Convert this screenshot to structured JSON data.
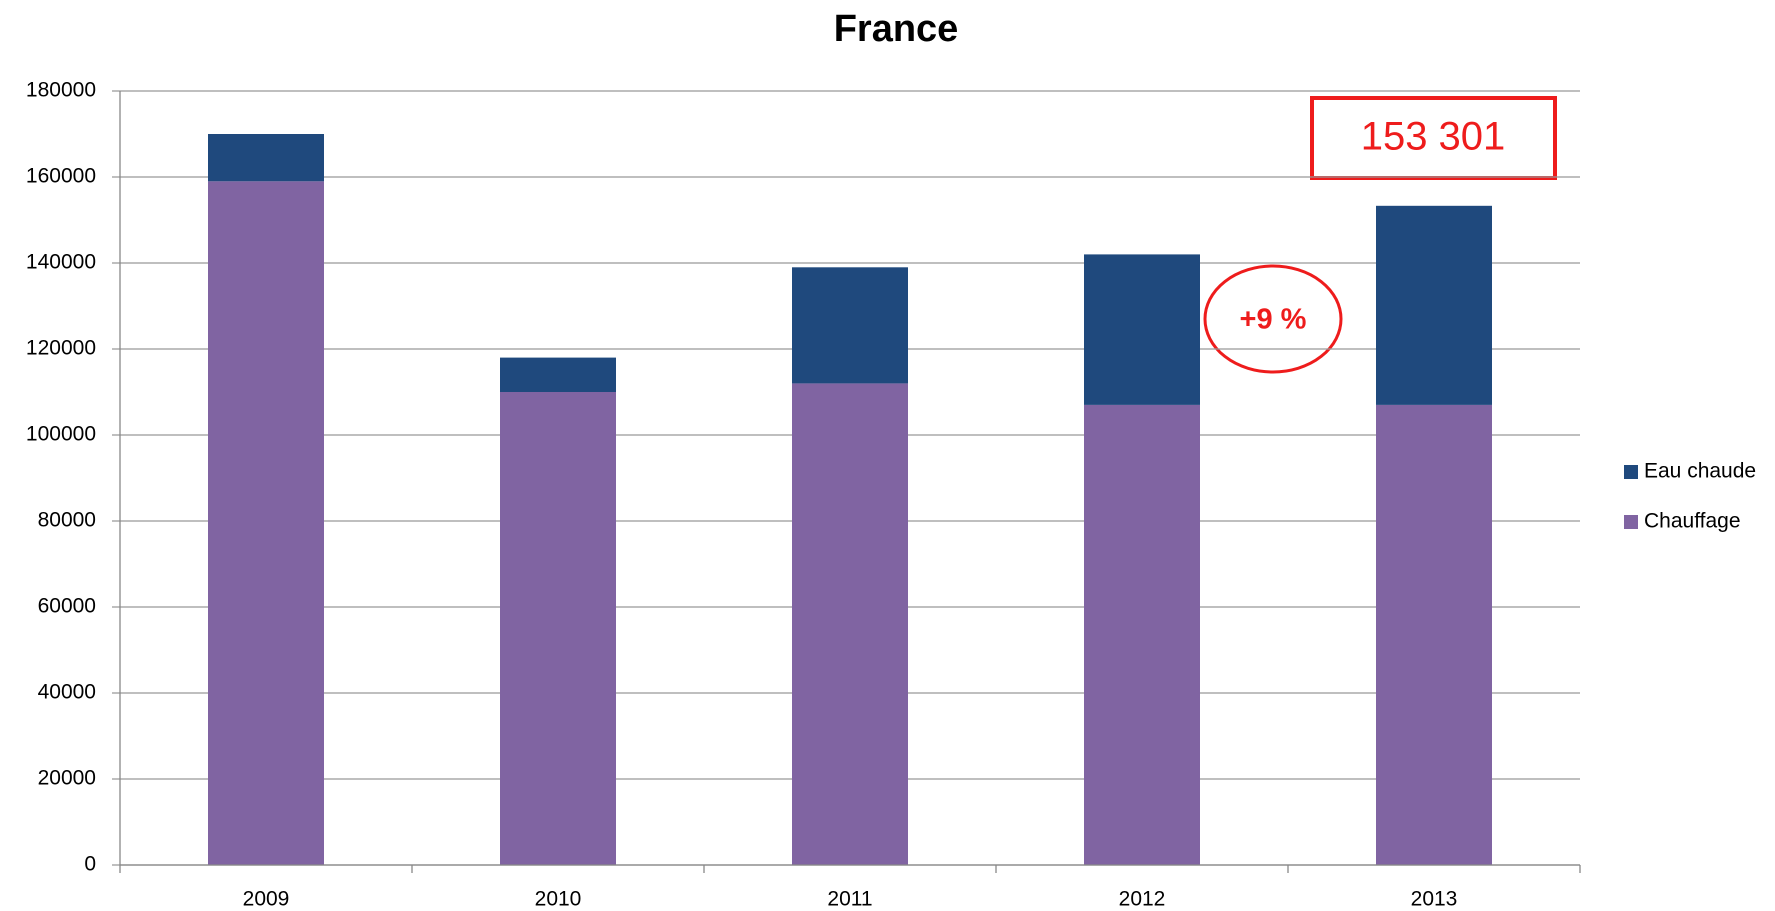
{
  "chart_data": {
    "type": "stacked_bar",
    "title": "France",
    "categories": [
      "2009",
      "2010",
      "2011",
      "2012",
      "2013"
    ],
    "series": [
      {
        "name": "Chauffage",
        "color": "#8064a2",
        "values": [
          159000,
          110000,
          112000,
          107000,
          107000
        ]
      },
      {
        "name": "Eau chaude",
        "color": "#1f497d",
        "values": [
          11000,
          8000,
          27000,
          35000,
          46301
        ]
      }
    ],
    "ylim": [
      0,
      180000
    ],
    "yticks": [
      0,
      20000,
      40000,
      60000,
      80000,
      100000,
      120000,
      140000,
      160000,
      180000
    ],
    "grid": true,
    "legend": "right",
    "annotations": [
      "153 301",
      "+9 %"
    ]
  }
}
